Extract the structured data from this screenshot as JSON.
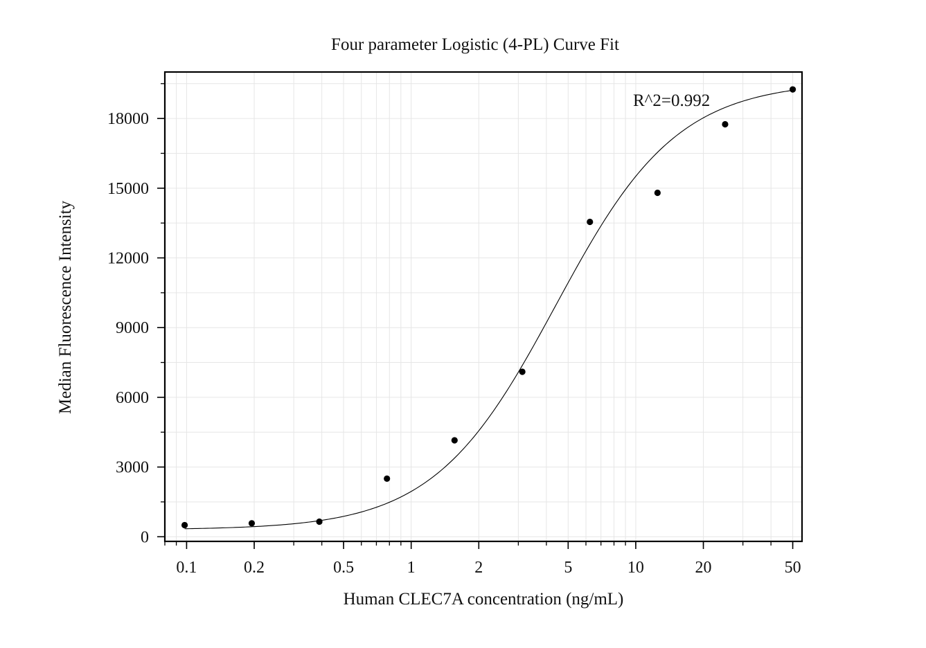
{
  "chart_data": {
    "type": "scatter",
    "title": "Four parameter Logistic (4-PL) Curve Fit",
    "xlabel": "Human CLEC7A concentration (ng/mL)",
    "ylabel": "Median Fluorescence Intensity",
    "annotation": "R^2=0.992",
    "x_scale": "log",
    "xlim": [
      0.08,
      55
    ],
    "ylim": [
      -200,
      20000
    ],
    "x_ticks": [
      0.1,
      0.2,
      0.5,
      1,
      2,
      5,
      10,
      20,
      50
    ],
    "x_tick_labels": [
      "0.1",
      "0.2",
      "0.5",
      "1",
      "2",
      "5",
      "10",
      "20",
      "50"
    ],
    "y_ticks": [
      0,
      3000,
      6000,
      9000,
      12000,
      15000,
      18000
    ],
    "y_tick_labels": [
      "0",
      "3000",
      "6000",
      "9000",
      "12000",
      "15000",
      "18000"
    ],
    "grid": true,
    "points": {
      "x": [
        0.098,
        0.195,
        0.39,
        0.78,
        1.56,
        3.125,
        6.25,
        12.5,
        25,
        50
      ],
      "y": [
        500,
        580,
        650,
        2500,
        4150,
        7100,
        13550,
        14800,
        17750,
        19250
      ]
    },
    "fit_curve": {
      "model": "4PL",
      "a": 300,
      "d": 19600,
      "c": 4.4,
      "b": 1.6,
      "x_range": [
        0.098,
        50
      ]
    },
    "colors": {
      "points": "#000000",
      "curve": "#000000",
      "grid": "#e6e6e6",
      "axes": "#000000"
    }
  }
}
